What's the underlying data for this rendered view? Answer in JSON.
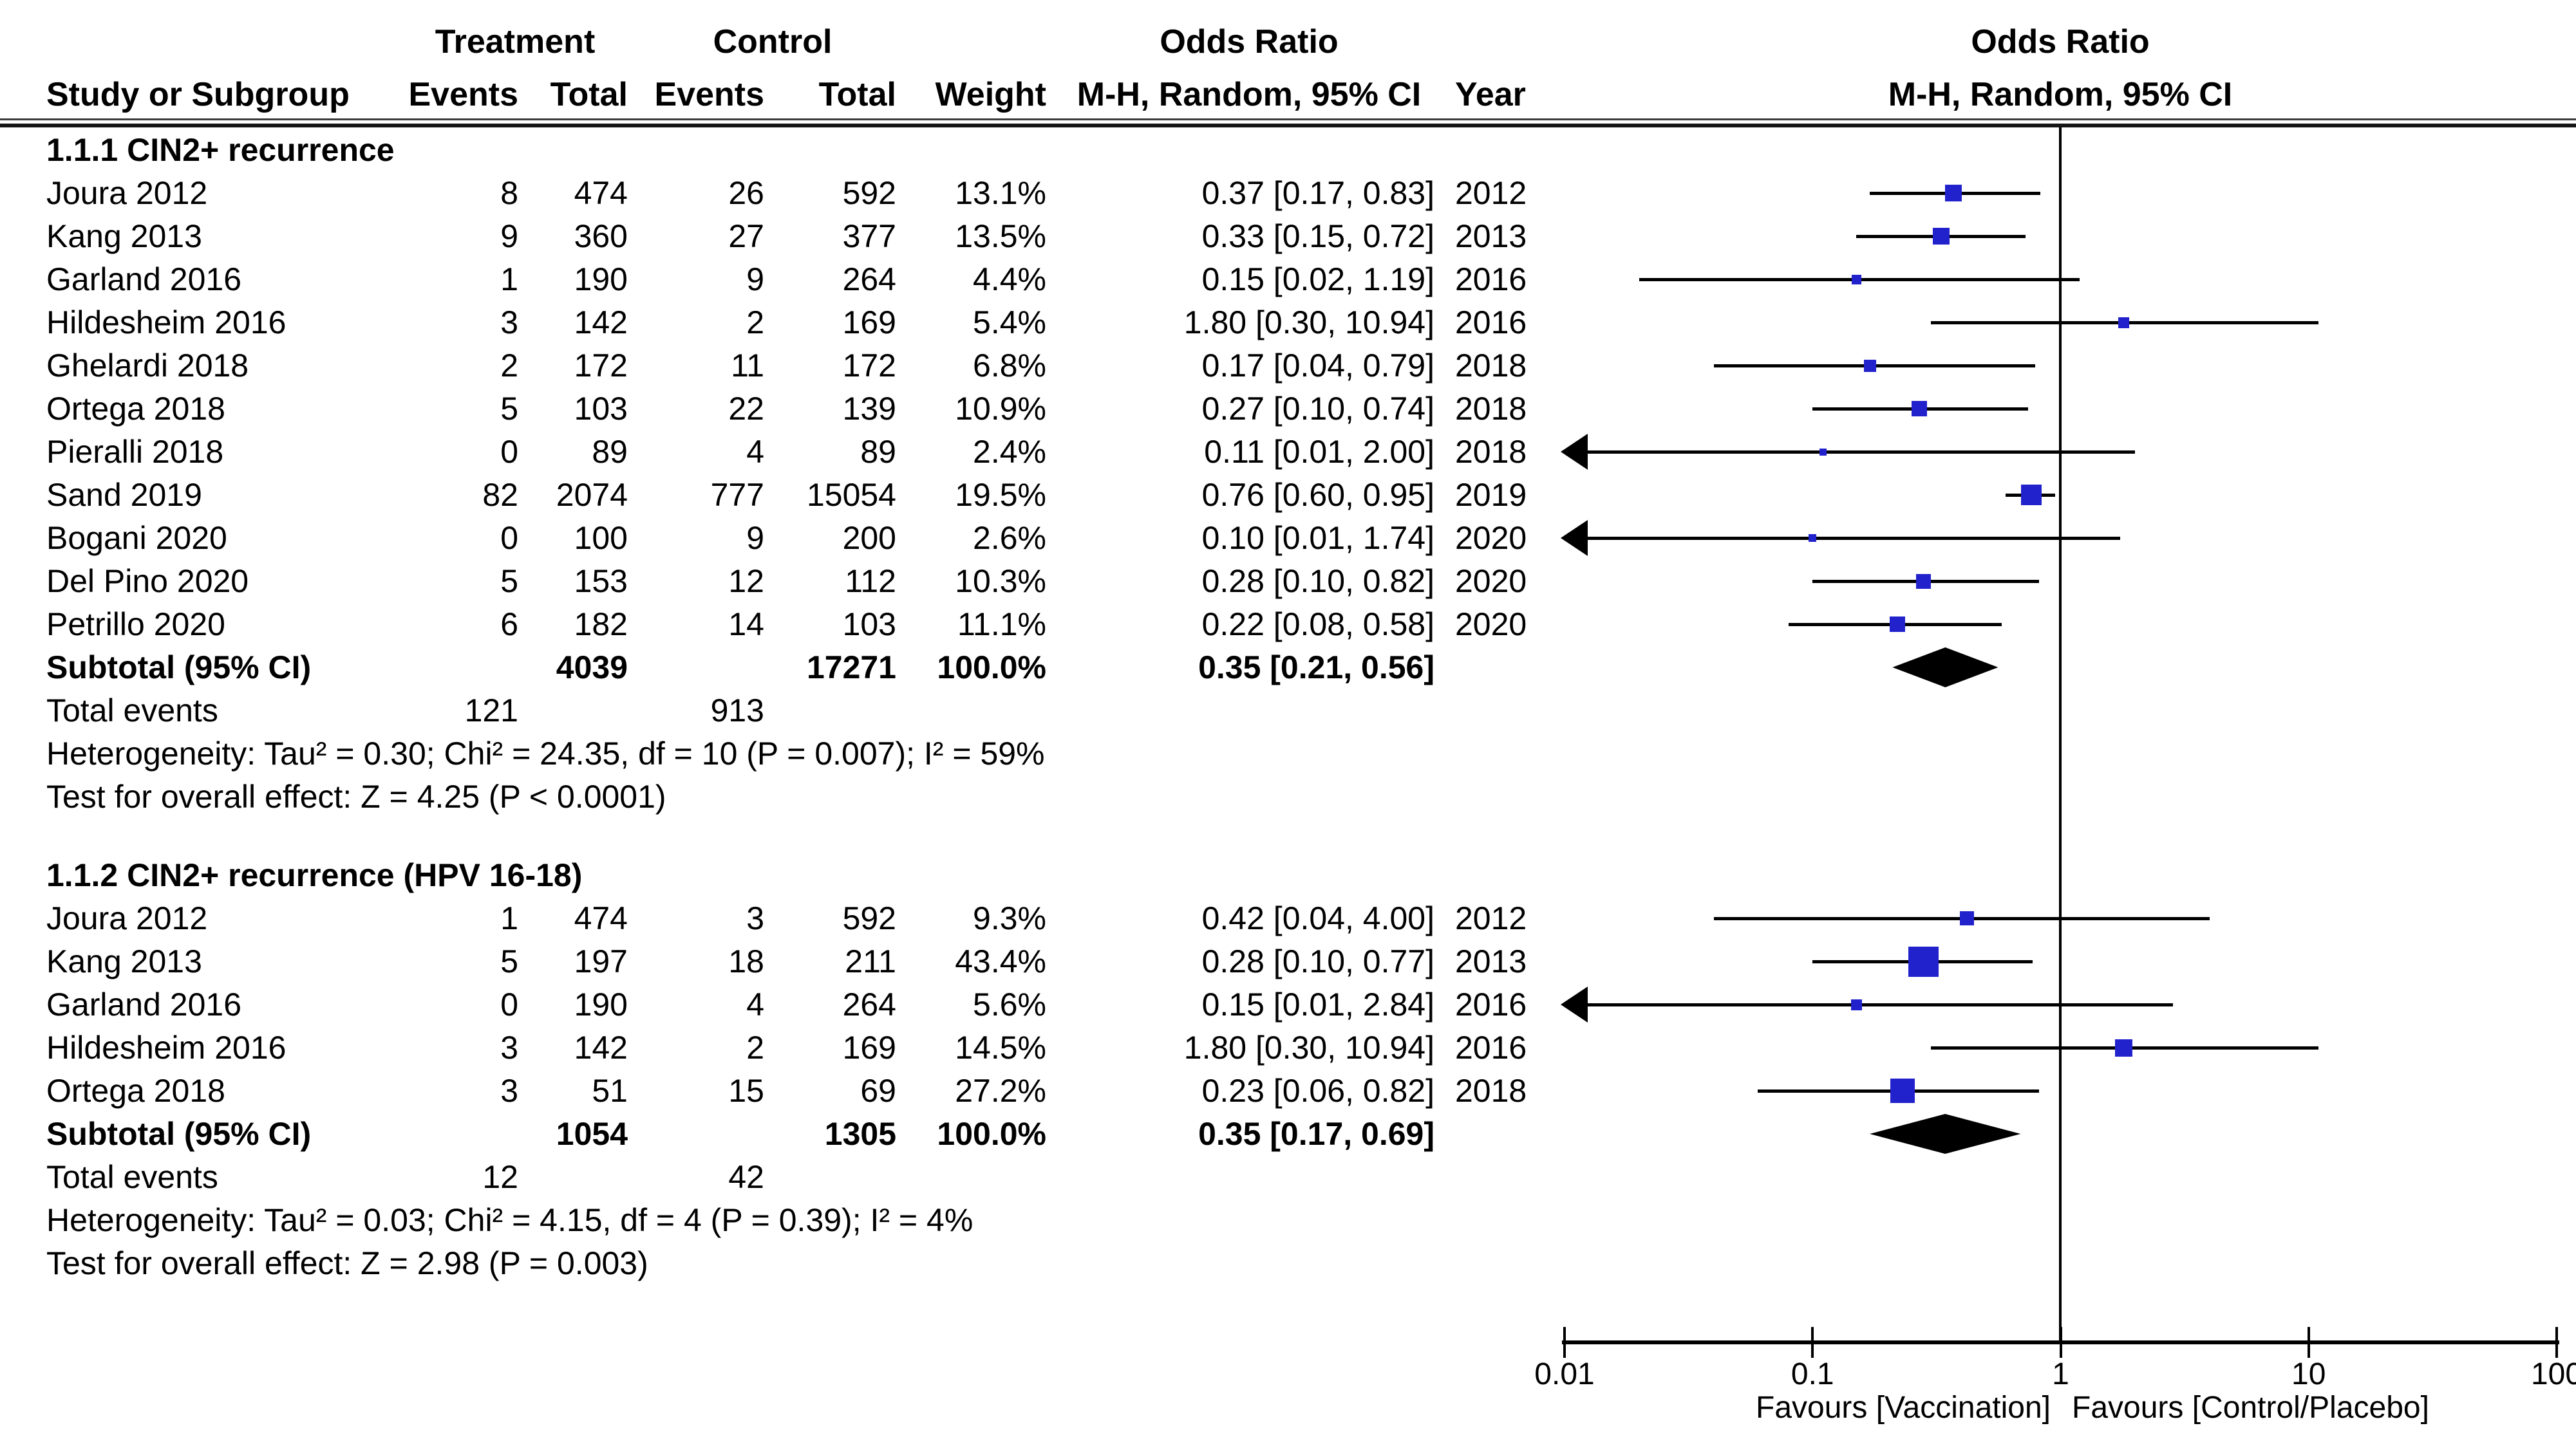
{
  "header": {
    "treatment_group": "Treatment",
    "control_group": "Control",
    "odds_ratio_col": "Odds Ratio",
    "study_or_subgroup": "Study or Subgroup",
    "events_treatment": "Events",
    "total_treatment": "Total",
    "events_control": "Events",
    "total_control": "Total",
    "weight": "Weight",
    "mh_random_ci": "M-H, Random, 95% CI",
    "year": "Year",
    "plot_odds_ratio": "Odds Ratio",
    "plot_mh_random_ci": "M-H, Random, 95% CI"
  },
  "chart_data": {
    "type": "forest",
    "effect_measure": "Odds Ratio",
    "method": "M-H, Random, 95% CI",
    "x_axis": {
      "scale": "log",
      "min": 0.01,
      "max": 100,
      "ref_line": 1,
      "ticks": [
        {
          "v": 0.01,
          "label": "0.01"
        },
        {
          "v": 0.1,
          "label": "0.1"
        },
        {
          "v": 1,
          "label": "1"
        },
        {
          "v": 10,
          "label": "10"
        },
        {
          "v": 100,
          "label": "100"
        }
      ]
    },
    "footer": {
      "favours_left": "Favours [Vaccination]",
      "favours_right": "Favours [Control/Placebo]"
    },
    "style": {
      "marker_color": "#2222cc",
      "ci_color": "#000000",
      "diamond_color": "#000000"
    },
    "subgroups": [
      {
        "label": "1.1.1 CIN2+ recurrence",
        "studies": [
          {
            "study": "Joura 2012",
            "t_events": "8",
            "t_total": "474",
            "c_events": "26",
            "c_total": "592",
            "weight": "13.1%",
            "or": 0.37,
            "ci_low": 0.17,
            "ci_high": 0.83,
            "or_text": "0.37 [0.17, 0.83]",
            "year": "2012",
            "arrow_low": false
          },
          {
            "study": "Kang 2013",
            "t_events": "9",
            "t_total": "360",
            "c_events": "27",
            "c_total": "377",
            "weight": "13.5%",
            "or": 0.33,
            "ci_low": 0.15,
            "ci_high": 0.72,
            "or_text": "0.33 [0.15, 0.72]",
            "year": "2013",
            "arrow_low": false
          },
          {
            "study": "Garland 2016",
            "t_events": "1",
            "t_total": "190",
            "c_events": "9",
            "c_total": "264",
            "weight": "4.4%",
            "or": 0.15,
            "ci_low": 0.02,
            "ci_high": 1.19,
            "or_text": "0.15 [0.02, 1.19]",
            "year": "2016",
            "arrow_low": false
          },
          {
            "study": "Hildesheim 2016",
            "t_events": "3",
            "t_total": "142",
            "c_events": "2",
            "c_total": "169",
            "weight": "5.4%",
            "or": 1.8,
            "ci_low": 0.3,
            "ci_high": 10.94,
            "or_text": "1.80 [0.30, 10.94]",
            "year": "2016",
            "arrow_low": false
          },
          {
            "study": "Ghelardi 2018",
            "t_events": "2",
            "t_total": "172",
            "c_events": "11",
            "c_total": "172",
            "weight": "6.8%",
            "or": 0.17,
            "ci_low": 0.04,
            "ci_high": 0.79,
            "or_text": "0.17 [0.04, 0.79]",
            "year": "2018",
            "arrow_low": false
          },
          {
            "study": "Ortega 2018",
            "t_events": "5",
            "t_total": "103",
            "c_events": "22",
            "c_total": "139",
            "weight": "10.9%",
            "or": 0.27,
            "ci_low": 0.1,
            "ci_high": 0.74,
            "or_text": "0.27 [0.10, 0.74]",
            "year": "2018",
            "arrow_low": false
          },
          {
            "study": "Pieralli 2018",
            "t_events": "0",
            "t_total": "89",
            "c_events": "4",
            "c_total": "89",
            "weight": "2.4%",
            "or": 0.11,
            "ci_low": 0.01,
            "ci_high": 2.0,
            "or_text": "0.11 [0.01, 2.00]",
            "year": "2018",
            "arrow_low": true
          },
          {
            "study": "Sand 2019",
            "t_events": "82",
            "t_total": "2074",
            "c_events": "777",
            "c_total": "15054",
            "weight": "19.5%",
            "or": 0.76,
            "ci_low": 0.6,
            "ci_high": 0.95,
            "or_text": "0.76 [0.60, 0.95]",
            "year": "2019",
            "arrow_low": false
          },
          {
            "study": "Bogani 2020",
            "t_events": "0",
            "t_total": "100",
            "c_events": "9",
            "c_total": "200",
            "weight": "2.6%",
            "or": 0.1,
            "ci_low": 0.01,
            "ci_high": 1.74,
            "or_text": "0.10 [0.01, 1.74]",
            "year": "2020",
            "arrow_low": true
          },
          {
            "study": "Del Pino 2020",
            "t_events": "5",
            "t_total": "153",
            "c_events": "12",
            "c_total": "112",
            "weight": "10.3%",
            "or": 0.28,
            "ci_low": 0.1,
            "ci_high": 0.82,
            "or_text": "0.28 [0.10, 0.82]",
            "year": "2020",
            "arrow_low": false
          },
          {
            "study": "Petrillo 2020",
            "t_events": "6",
            "t_total": "182",
            "c_events": "14",
            "c_total": "103",
            "weight": "11.1%",
            "or": 0.22,
            "ci_low": 0.08,
            "ci_high": 0.58,
            "or_text": "0.22 [0.08, 0.58]",
            "year": "2020",
            "arrow_low": false
          }
        ],
        "subtotal": {
          "label": "Subtotal (95% CI)",
          "t_total": "4039",
          "c_total": "17271",
          "weight": "100.0%",
          "or": 0.35,
          "ci_low": 0.21,
          "ci_high": 0.56,
          "or_text": "0.35 [0.21, 0.56]"
        },
        "total_events": {
          "label": "Total events",
          "treatment": "121",
          "control": "913"
        },
        "heterogeneity": "Heterogeneity: Tau² = 0.30; Chi² = 24.35, df = 10 (P = 0.007); I² = 59%",
        "overall_effect": "Test for overall effect: Z = 4.25 (P < 0.0001)"
      },
      {
        "label": "1.1.2 CIN2+ recurrence (HPV 16-18)",
        "studies": [
          {
            "study": "Joura 2012",
            "t_events": "1",
            "t_total": "474",
            "c_events": "3",
            "c_total": "592",
            "weight": "9.3%",
            "or": 0.42,
            "ci_low": 0.04,
            "ci_high": 4.0,
            "or_text": "0.42 [0.04, 4.00]",
            "year": "2012",
            "arrow_low": false
          },
          {
            "study": "Kang 2013",
            "t_events": "5",
            "t_total": "197",
            "c_events": "18",
            "c_total": "211",
            "weight": "43.4%",
            "or": 0.28,
            "ci_low": 0.1,
            "ci_high": 0.77,
            "or_text": "0.28 [0.10, 0.77]",
            "year": "2013",
            "arrow_low": false
          },
          {
            "study": "Garland 2016",
            "t_events": "0",
            "t_total": "190",
            "c_events": "4",
            "c_total": "264",
            "weight": "5.6%",
            "or": 0.15,
            "ci_low": 0.01,
            "ci_high": 2.84,
            "or_text": "0.15 [0.01, 2.84]",
            "year": "2016",
            "arrow_low": true
          },
          {
            "study": "Hildesheim 2016",
            "t_events": "3",
            "t_total": "142",
            "c_events": "2",
            "c_total": "169",
            "weight": "14.5%",
            "or": 1.8,
            "ci_low": 0.3,
            "ci_high": 10.94,
            "or_text": "1.80 [0.30, 10.94]",
            "year": "2016",
            "arrow_low": false
          },
          {
            "study": "Ortega 2018",
            "t_events": "3",
            "t_total": "51",
            "c_events": "15",
            "c_total": "69",
            "weight": "27.2%",
            "or": 0.23,
            "ci_low": 0.06,
            "ci_high": 0.82,
            "or_text": "0.23 [0.06, 0.82]",
            "year": "2018",
            "arrow_low": false
          }
        ],
        "subtotal": {
          "label": "Subtotal (95% CI)",
          "t_total": "1054",
          "c_total": "1305",
          "weight": "100.0%",
          "or": 0.35,
          "ci_low": 0.17,
          "ci_high": 0.69,
          "or_text": "0.35 [0.17, 0.69]"
        },
        "total_events": {
          "label": "Total events",
          "treatment": "12",
          "control": "42"
        },
        "heterogeneity": "Heterogeneity: Tau² = 0.03; Chi² = 4.15, df = 4 (P = 0.39); I² = 4%",
        "overall_effect": "Test for overall effect: Z = 2.98 (P = 0.003)"
      }
    ]
  }
}
